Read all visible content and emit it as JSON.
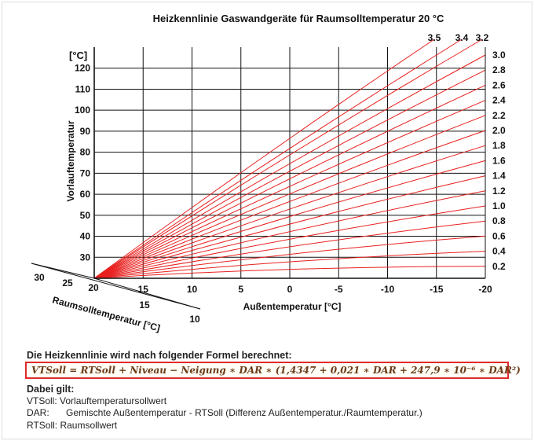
{
  "chart_data": {
    "type": "line",
    "title": "Heizkennlinie Gaswandgeräte für Raumsolltemperatur 20 °C",
    "ylabel": "Vorlauftemperatur",
    "yunit": "[°C]",
    "xlabel": "Außentemperatur [°C]",
    "zlabel": "Raumsolltemperatur [°C]",
    "x_ticks": [
      "15",
      "10",
      "5",
      "0",
      "-5",
      "-10",
      "-15",
      "-20"
    ],
    "x_tick_values": [
      15,
      10,
      5,
      0,
      -5,
      -10,
      -15,
      -20
    ],
    "xlim": [
      20,
      -20
    ],
    "y_ticks": [
      "30",
      "40",
      "50",
      "60",
      "70",
      "80",
      "90",
      "100",
      "110",
      "120"
    ],
    "y_tick_values": [
      30,
      40,
      50,
      60,
      70,
      80,
      90,
      100,
      110,
      120
    ],
    "ylim": [
      20,
      130
    ],
    "origin_label": "20",
    "room_ticks_row1": [
      "30",
      "25"
    ],
    "room_ticks_row2": [
      "15"
    ],
    "room_ticks_row3": [
      "10"
    ],
    "slope_labels_right": [
      "3.0",
      "2.8",
      "2.6",
      "2.4",
      "2.2",
      "2.0",
      "1.8",
      "1.6",
      "1.4",
      "1.2",
      "1.0",
      "0.8",
      "0.6",
      "0.4",
      "0.2"
    ],
    "slope_values_right": [
      3.0,
      2.8,
      2.6,
      2.4,
      2.2,
      2.0,
      1.8,
      1.6,
      1.4,
      1.2,
      1.0,
      0.8,
      0.6,
      0.4,
      0.2
    ],
    "slope_labels_top": [
      "3.5",
      "3.4",
      "3.2"
    ],
    "slope_values_top": [
      3.5,
      3.4,
      3.2
    ],
    "series": [
      {
        "slope": 0.2
      },
      {
        "slope": 0.4
      },
      {
        "slope": 0.6
      },
      {
        "slope": 0.8
      },
      {
        "slope": 1.0
      },
      {
        "slope": 1.2
      },
      {
        "slope": 1.4
      },
      {
        "slope": 1.6
      },
      {
        "slope": 1.8
      },
      {
        "slope": 2.0
      },
      {
        "slope": 2.2
      },
      {
        "slope": 2.4
      },
      {
        "slope": 2.6
      },
      {
        "slope": 2.8
      },
      {
        "slope": 3.0
      },
      {
        "slope": 3.2
      },
      {
        "slope": 3.4
      },
      {
        "slope": 3.5
      }
    ],
    "line_color": "#e8201e",
    "grid": true
  },
  "formula": {
    "heading": "Die Heizkennlinie wird nach folgender Formel berechnet:",
    "text": "VTSoll = RTSoll + Niveau − Neigung ∗ DAR ∗ (1,4347 + 0,021 ∗ DAR + 247,9 ∗  10⁻⁶ ∗ DAR²)",
    "border_color": "#e02b2b"
  },
  "legend": {
    "title": "Dabei gilt:",
    "rows": [
      {
        "text": "VTSoll: Vorlauftemperatursollwert"
      },
      {
        "key": "DAR:",
        "text": "Gemischte Außentemperatur - RTSoll (Differenz Außentemperatur./Raumtemperatur.)"
      },
      {
        "text": "RTSoll: Raumsollwert"
      }
    ]
  }
}
